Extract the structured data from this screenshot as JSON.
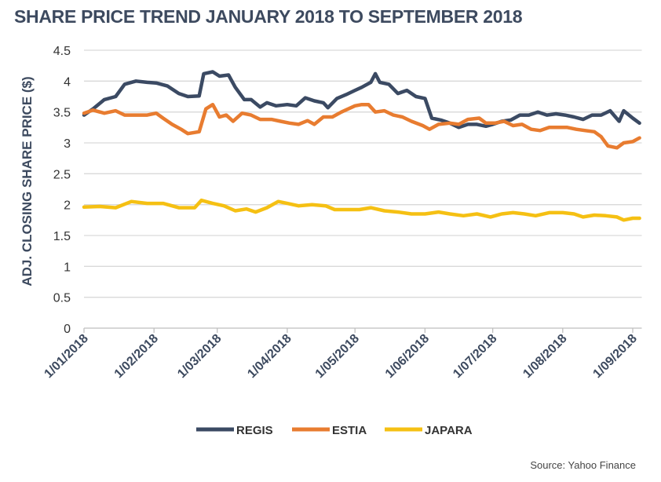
{
  "chart_data": {
    "type": "line",
    "title": "SHARE PRICE TREND JANUARY 2018 TO SEPTEMBER 2018",
    "xlabel": "",
    "ylabel": "ADJ. CLOSING SHARE PRICE ($)",
    "ylim": [
      0,
      4.5
    ],
    "yticks": [
      "0",
      "0.5",
      "1",
      "1.5",
      "2",
      "2.5",
      "3",
      "3.5",
      "4",
      "4.5"
    ],
    "xticks": [
      {
        "date": "2018-01-01",
        "label": "1/01/2018"
      },
      {
        "date": "2018-02-01",
        "label": "1/02/2018"
      },
      {
        "date": "2018-03-01",
        "label": "1/03/2018"
      },
      {
        "date": "2018-04-01",
        "label": "1/04/2018"
      },
      {
        "date": "2018-05-01",
        "label": "1/05/2018"
      },
      {
        "date": "2018-06-01",
        "label": "1/06/2018"
      },
      {
        "date": "2018-07-01",
        "label": "1/07/2018"
      },
      {
        "date": "2018-08-01",
        "label": "1/08/2018"
      },
      {
        "date": "2018-09-01",
        "label": "1/09/2018"
      }
    ],
    "xlim": [
      "2018-01-01",
      "2018-09-05"
    ],
    "grid": "horizontal",
    "legend": "bottom",
    "source": "Source: Yahoo Finance",
    "series": [
      {
        "name": "REGIS",
        "color": "#3b4a63",
        "points": [
          [
            "2018-01-01",
            3.45
          ],
          [
            "2018-01-05",
            3.55
          ],
          [
            "2018-01-10",
            3.7
          ],
          [
            "2018-01-15",
            3.75
          ],
          [
            "2018-01-19",
            3.95
          ],
          [
            "2018-01-24",
            4.0
          ],
          [
            "2018-01-29",
            3.98
          ],
          [
            "2018-02-02",
            3.97
          ],
          [
            "2018-02-07",
            3.92
          ],
          [
            "2018-02-12",
            3.8
          ],
          [
            "2018-02-16",
            3.75
          ],
          [
            "2018-02-21",
            3.76
          ],
          [
            "2018-02-23",
            4.12
          ],
          [
            "2018-02-27",
            4.15
          ],
          [
            "2018-03-02",
            4.08
          ],
          [
            "2018-03-06",
            4.1
          ],
          [
            "2018-03-09",
            3.9
          ],
          [
            "2018-03-13",
            3.7
          ],
          [
            "2018-03-16",
            3.7
          ],
          [
            "2018-03-20",
            3.58
          ],
          [
            "2018-03-23",
            3.65
          ],
          [
            "2018-03-27",
            3.6
          ],
          [
            "2018-04-01",
            3.62
          ],
          [
            "2018-04-05",
            3.6
          ],
          [
            "2018-04-09",
            3.73
          ],
          [
            "2018-04-13",
            3.68
          ],
          [
            "2018-04-17",
            3.65
          ],
          [
            "2018-04-19",
            3.57
          ],
          [
            "2018-04-23",
            3.72
          ],
          [
            "2018-04-27",
            3.78
          ],
          [
            "2018-05-01",
            3.85
          ],
          [
            "2018-05-04",
            3.9
          ],
          [
            "2018-05-08",
            3.98
          ],
          [
            "2018-05-10",
            4.12
          ],
          [
            "2018-05-12",
            3.98
          ],
          [
            "2018-05-16",
            3.95
          ],
          [
            "2018-05-20",
            3.8
          ],
          [
            "2018-05-24",
            3.85
          ],
          [
            "2018-05-28",
            3.75
          ],
          [
            "2018-06-01",
            3.72
          ],
          [
            "2018-06-04",
            3.4
          ],
          [
            "2018-06-08",
            3.37
          ],
          [
            "2018-06-12",
            3.32
          ],
          [
            "2018-06-16",
            3.25
          ],
          [
            "2018-06-20",
            3.3
          ],
          [
            "2018-06-24",
            3.3
          ],
          [
            "2018-06-28",
            3.27
          ],
          [
            "2018-07-01",
            3.3
          ],
          [
            "2018-07-05",
            3.35
          ],
          [
            "2018-07-09",
            3.37
          ],
          [
            "2018-07-13",
            3.45
          ],
          [
            "2018-07-17",
            3.45
          ],
          [
            "2018-07-21",
            3.5
          ],
          [
            "2018-07-25",
            3.45
          ],
          [
            "2018-07-29",
            3.47
          ],
          [
            "2018-08-02",
            3.45
          ],
          [
            "2018-08-06",
            3.42
          ],
          [
            "2018-08-10",
            3.38
          ],
          [
            "2018-08-14",
            3.45
          ],
          [
            "2018-08-18",
            3.45
          ],
          [
            "2018-08-22",
            3.52
          ],
          [
            "2018-08-26",
            3.35
          ],
          [
            "2018-08-28",
            3.52
          ],
          [
            "2018-09-01",
            3.4
          ],
          [
            "2018-09-04",
            3.32
          ]
        ]
      },
      {
        "name": "ESTIA",
        "color": "#e87c30",
        "points": [
          [
            "2018-01-01",
            3.48
          ],
          [
            "2018-01-05",
            3.53
          ],
          [
            "2018-01-10",
            3.48
          ],
          [
            "2018-01-15",
            3.52
          ],
          [
            "2018-01-19",
            3.45
          ],
          [
            "2018-01-24",
            3.45
          ],
          [
            "2018-01-29",
            3.45
          ],
          [
            "2018-02-02",
            3.48
          ],
          [
            "2018-02-05",
            3.4
          ],
          [
            "2018-02-09",
            3.3
          ],
          [
            "2018-02-13",
            3.22
          ],
          [
            "2018-02-16",
            3.15
          ],
          [
            "2018-02-21",
            3.18
          ],
          [
            "2018-02-24",
            3.55
          ],
          [
            "2018-02-27",
            3.62
          ],
          [
            "2018-03-02",
            3.42
          ],
          [
            "2018-03-05",
            3.45
          ],
          [
            "2018-03-08",
            3.35
          ],
          [
            "2018-03-12",
            3.48
          ],
          [
            "2018-03-16",
            3.45
          ],
          [
            "2018-03-20",
            3.38
          ],
          [
            "2018-03-25",
            3.38
          ],
          [
            "2018-03-29",
            3.35
          ],
          [
            "2018-04-02",
            3.32
          ],
          [
            "2018-04-06",
            3.3
          ],
          [
            "2018-04-10",
            3.36
          ],
          [
            "2018-04-13",
            3.3
          ],
          [
            "2018-04-17",
            3.42
          ],
          [
            "2018-04-21",
            3.42
          ],
          [
            "2018-04-25",
            3.5
          ],
          [
            "2018-05-01",
            3.6
          ],
          [
            "2018-05-04",
            3.62
          ],
          [
            "2018-05-07",
            3.62
          ],
          [
            "2018-05-10",
            3.5
          ],
          [
            "2018-05-14",
            3.52
          ],
          [
            "2018-05-18",
            3.45
          ],
          [
            "2018-05-22",
            3.42
          ],
          [
            "2018-05-26",
            3.35
          ],
          [
            "2018-05-31",
            3.28
          ],
          [
            "2018-06-03",
            3.22
          ],
          [
            "2018-06-07",
            3.3
          ],
          [
            "2018-06-12",
            3.32
          ],
          [
            "2018-06-16",
            3.3
          ],
          [
            "2018-06-20",
            3.38
          ],
          [
            "2018-06-25",
            3.4
          ],
          [
            "2018-06-28",
            3.32
          ],
          [
            "2018-07-02",
            3.32
          ],
          [
            "2018-07-06",
            3.35
          ],
          [
            "2018-07-10",
            3.28
          ],
          [
            "2018-07-14",
            3.3
          ],
          [
            "2018-07-18",
            3.22
          ],
          [
            "2018-07-22",
            3.2
          ],
          [
            "2018-07-26",
            3.25
          ],
          [
            "2018-07-30",
            3.25
          ],
          [
            "2018-08-03",
            3.25
          ],
          [
            "2018-08-07",
            3.22
          ],
          [
            "2018-08-11",
            3.2
          ],
          [
            "2018-08-15",
            3.18
          ],
          [
            "2018-08-18",
            3.1
          ],
          [
            "2018-08-21",
            2.95
          ],
          [
            "2018-08-25",
            2.92
          ],
          [
            "2018-08-28",
            3.0
          ],
          [
            "2018-09-01",
            3.02
          ],
          [
            "2018-09-04",
            3.08
          ]
        ]
      },
      {
        "name": "JAPARA",
        "color": "#f5c013",
        "points": [
          [
            "2018-01-01",
            1.96
          ],
          [
            "2018-01-08",
            1.97
          ],
          [
            "2018-01-15",
            1.95
          ],
          [
            "2018-01-22",
            2.05
          ],
          [
            "2018-01-29",
            2.02
          ],
          [
            "2018-02-05",
            2.02
          ],
          [
            "2018-02-12",
            1.95
          ],
          [
            "2018-02-19",
            1.95
          ],
          [
            "2018-02-22",
            2.07
          ],
          [
            "2018-02-27",
            2.02
          ],
          [
            "2018-03-04",
            1.98
          ],
          [
            "2018-03-09",
            1.9
          ],
          [
            "2018-03-14",
            1.93
          ],
          [
            "2018-03-18",
            1.88
          ],
          [
            "2018-03-23",
            1.95
          ],
          [
            "2018-03-28",
            2.05
          ],
          [
            "2018-04-01",
            2.02
          ],
          [
            "2018-04-06",
            1.98
          ],
          [
            "2018-04-12",
            2.0
          ],
          [
            "2018-04-18",
            1.98
          ],
          [
            "2018-04-22",
            1.92
          ],
          [
            "2018-04-28",
            1.92
          ],
          [
            "2018-05-03",
            1.92
          ],
          [
            "2018-05-08",
            1.95
          ],
          [
            "2018-05-14",
            1.9
          ],
          [
            "2018-05-20",
            1.88
          ],
          [
            "2018-05-26",
            1.85
          ],
          [
            "2018-06-01",
            1.85
          ],
          [
            "2018-06-07",
            1.88
          ],
          [
            "2018-06-12",
            1.85
          ],
          [
            "2018-06-18",
            1.82
          ],
          [
            "2018-06-24",
            1.85
          ],
          [
            "2018-06-30",
            1.8
          ],
          [
            "2018-07-05",
            1.85
          ],
          [
            "2018-07-10",
            1.87
          ],
          [
            "2018-07-15",
            1.85
          ],
          [
            "2018-07-20",
            1.82
          ],
          [
            "2018-07-26",
            1.87
          ],
          [
            "2018-08-01",
            1.87
          ],
          [
            "2018-08-06",
            1.85
          ],
          [
            "2018-08-10",
            1.8
          ],
          [
            "2018-08-15",
            1.83
          ],
          [
            "2018-08-20",
            1.82
          ],
          [
            "2018-08-25",
            1.8
          ],
          [
            "2018-08-28",
            1.75
          ],
          [
            "2018-09-01",
            1.78
          ],
          [
            "2018-09-04",
            1.78
          ]
        ]
      }
    ]
  }
}
